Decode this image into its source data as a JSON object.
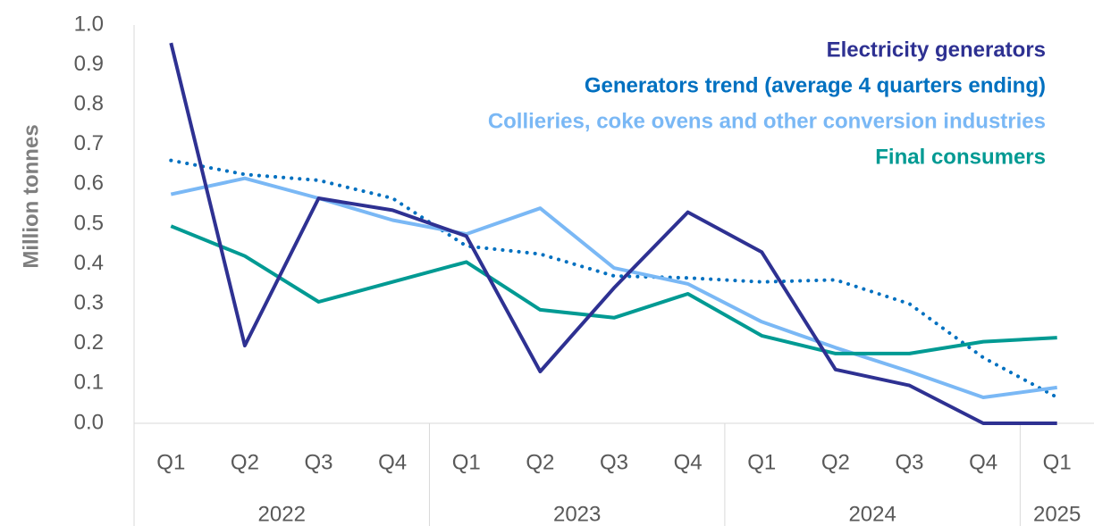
{
  "chart_data": {
    "type": "line",
    "y_label": "Million tonnes",
    "categories": [
      "Q1",
      "Q2",
      "Q3",
      "Q4",
      "Q1",
      "Q2",
      "Q3",
      "Q4",
      "Q1",
      "Q2",
      "Q3",
      "Q4",
      "Q1"
    ],
    "x_groups": [
      {
        "label": "2022",
        "count": 4
      },
      {
        "label": "2023",
        "count": 4
      },
      {
        "label": "2024",
        "count": 4
      },
      {
        "label": "2025",
        "count": 1
      }
    ],
    "ylim": [
      0,
      1
    ],
    "yticks": [
      {
        "value": 0,
        "label": "0.0"
      },
      0.1,
      0.2,
      0.3,
      0.4,
      0.5,
      0.6,
      0.7,
      0.8,
      0.9,
      {
        "value": 1,
        "label": "1.0"
      }
    ],
    "grid": false,
    "legend": "top-right",
    "series": [
      {
        "name": "Electricity generators",
        "color": "#2e3192",
        "style": "solid",
        "values": [
          0.955,
          0.195,
          0.565,
          0.535,
          0.47,
          0.13,
          0.34,
          0.53,
          0.43,
          0.135,
          0.095,
          0.0,
          0.0
        ]
      },
      {
        "name": "Generators trend (average 4 quarters ending)",
        "color": "#0070c0",
        "style": "dotted",
        "values": [
          0.66,
          0.625,
          0.61,
          0.565,
          0.445,
          0.425,
          0.37,
          0.365,
          0.355,
          0.36,
          0.3,
          0.165,
          0.065
        ]
      },
      {
        "name": "Collieries, coke ovens and other conversion industries",
        "color": "#7ab8f5",
        "style": "solid",
        "values": [
          0.575,
          0.615,
          0.565,
          0.51,
          0.475,
          0.54,
          0.39,
          0.35,
          0.255,
          0.19,
          0.13,
          0.065,
          0.09
        ]
      },
      {
        "name": "Final consumers",
        "color": "#009a93",
        "style": "solid",
        "values": [
          0.495,
          0.42,
          0.305,
          0.355,
          0.405,
          0.285,
          0.265,
          0.325,
          0.22,
          0.175,
          0.175,
          0.205,
          0.215
        ]
      }
    ]
  }
}
